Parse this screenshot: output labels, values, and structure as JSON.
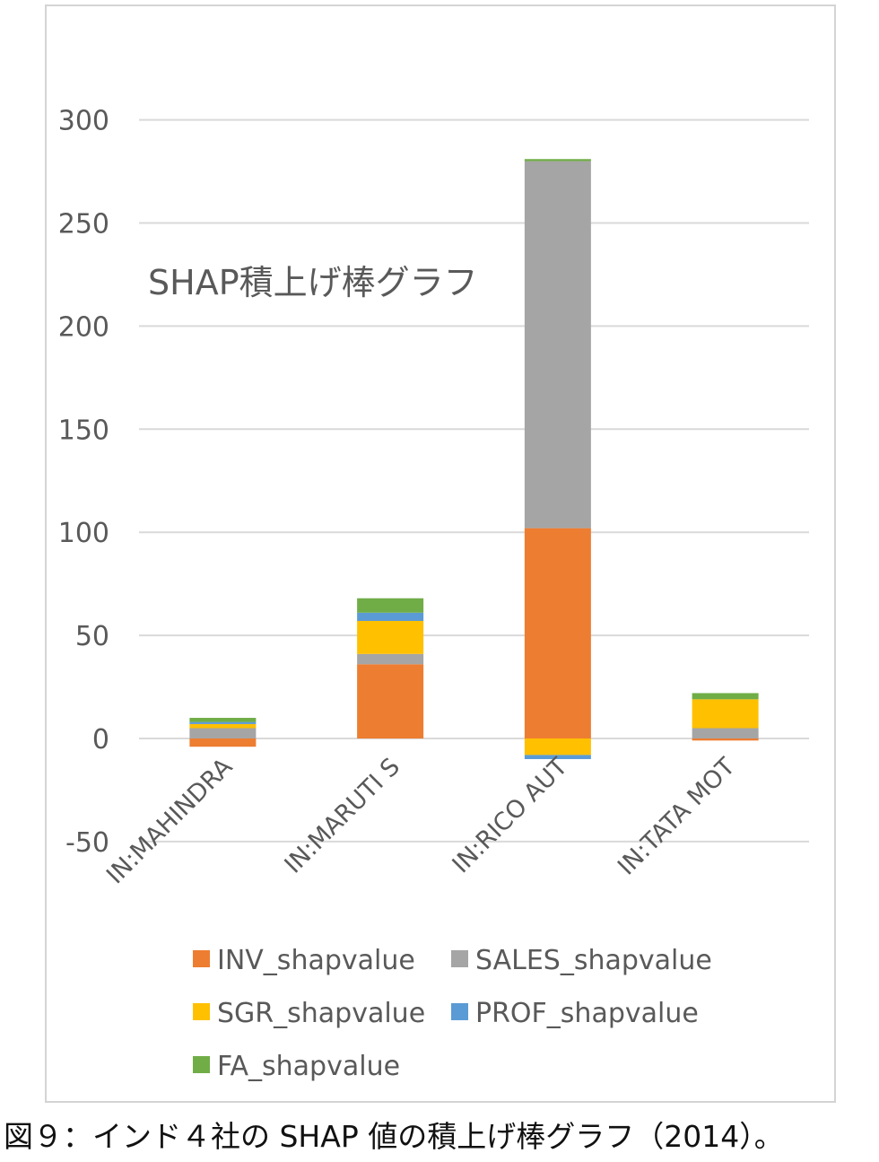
{
  "caption": "図９：インド４社の SHAP 値の積上げ棒グラフ（2014）。",
  "chart_data": {
    "type": "bar",
    "stacked": true,
    "title": "SHAP積上げ棒グラフ",
    "categories": [
      "IN:MAHINDRA",
      "IN:MARUTI S",
      "IN:RICO AUT",
      "IN:TATA MOT"
    ],
    "series": [
      {
        "name": "INV_shapvalue",
        "color": "#ED7D31",
        "values": [
          -4,
          36,
          102,
          -1
        ]
      },
      {
        "name": "SALES_shapvalue",
        "color": "#A5A5A5",
        "values": [
          5,
          5,
          178,
          5
        ]
      },
      {
        "name": "SGR_shapvalue",
        "color": "#FFC000",
        "values": [
          2,
          16,
          -8,
          14
        ]
      },
      {
        "name": "PROF_shapvalue",
        "color": "#5B9BD5",
        "values": [
          1,
          4,
          -2,
          0
        ]
      },
      {
        "name": "FA_shapvalue",
        "color": "#70AD47",
        "values": [
          2,
          7,
          1,
          3
        ]
      }
    ],
    "ylim": [
      -50,
      300
    ],
    "yticks": [
      "300",
      "250",
      "200",
      "150",
      "100",
      "50",
      "0",
      "-50"
    ],
    "ytick_values": [
      300,
      250,
      200,
      150,
      100,
      50,
      0,
      -50
    ],
    "grid": true,
    "legend_position": "bottom",
    "xlabel": "",
    "ylabel": ""
  }
}
